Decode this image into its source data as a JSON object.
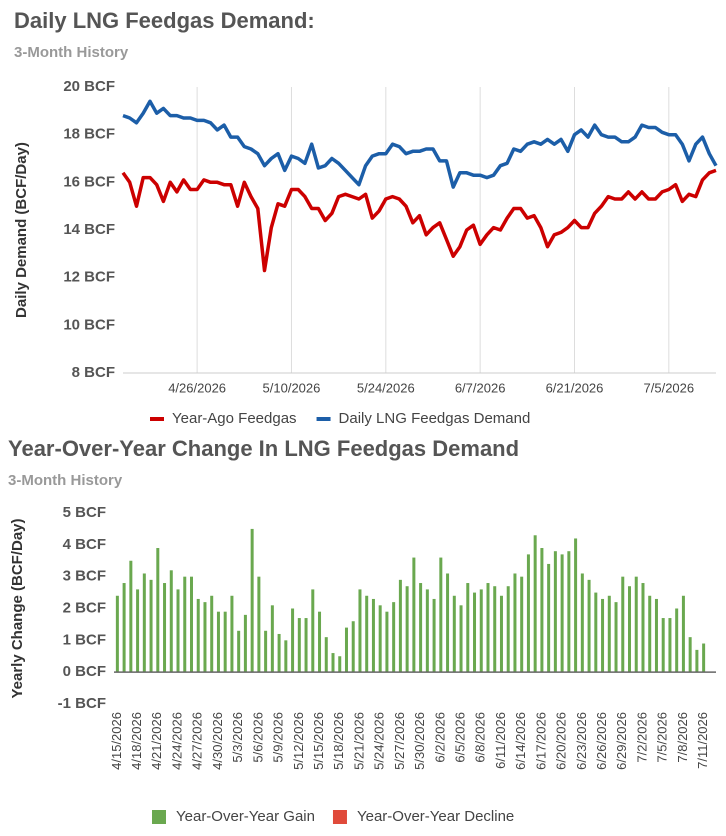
{
  "chart_data": [
    {
      "type": "line",
      "title": "Daily LNG Feedgas Demand:",
      "subtitle": "3-Month History",
      "ylabel": "Daily Demand (BCF/Day)",
      "x": [
        "4/15/2026",
        "4/16/2026",
        "4/17/2026",
        "4/18/2026",
        "4/19/2026",
        "4/20/2026",
        "4/21/2026",
        "4/22/2026",
        "4/23/2026",
        "4/24/2026",
        "4/25/2026",
        "4/26/2026",
        "4/27/2026",
        "4/28/2026",
        "4/29/2026",
        "4/30/2026",
        "5/1/2026",
        "5/2/2026",
        "5/3/2026",
        "5/4/2026",
        "5/5/2026",
        "5/6/2026",
        "5/7/2026",
        "5/8/2026",
        "5/9/2026",
        "5/10/2026",
        "5/11/2026",
        "5/12/2026",
        "5/13/2026",
        "5/14/2026",
        "5/15/2026",
        "5/16/2026",
        "5/17/2026",
        "5/18/2026",
        "5/19/2026",
        "5/20/2026",
        "5/21/2026",
        "5/22/2026",
        "5/23/2026",
        "5/24/2026",
        "5/25/2026",
        "5/26/2026",
        "5/27/2026",
        "5/28/2026",
        "5/29/2026",
        "5/30/2026",
        "5/31/2026",
        "6/1/2026",
        "6/2/2026",
        "6/3/2026",
        "6/4/2026",
        "6/5/2026",
        "6/6/2026",
        "6/7/2026",
        "6/8/2026",
        "6/9/2026",
        "6/10/2026",
        "6/11/2026",
        "6/12/2026",
        "6/13/2026",
        "6/14/2026",
        "6/15/2026",
        "6/16/2026",
        "6/17/2026",
        "6/18/2026",
        "6/19/2026",
        "6/20/2026",
        "6/21/2026",
        "6/22/2026",
        "6/23/2026",
        "6/24/2026",
        "6/25/2026",
        "6/26/2026",
        "6/27/2026",
        "6/28/2026",
        "6/29/2026",
        "6/30/2026",
        "7/1/2026",
        "7/2/2026",
        "7/3/2026",
        "7/4/2026",
        "7/5/2026",
        "7/6/2026",
        "7/7/2026",
        "7/8/2026",
        "7/9/2026",
        "7/10/2026",
        "7/11/2026",
        "7/12/2026"
      ],
      "xticks": [
        "4/26/2026",
        "5/10/2026",
        "5/24/2026",
        "6/7/2026",
        "6/21/2026",
        "7/5/2026"
      ],
      "ylim": [
        8,
        20
      ],
      "yticks": [
        {
          "value": 8,
          "label": "8 BCF"
        },
        {
          "value": 10,
          "label": "10 BCF"
        },
        {
          "value": 12,
          "label": "12 BCF"
        },
        {
          "value": 14,
          "label": "14 BCF"
        },
        {
          "value": 16,
          "label": "16 BCF"
        },
        {
          "value": 18,
          "label": "18 BCF"
        },
        {
          "value": 20,
          "label": "20 BCF"
        }
      ],
      "grid": "x",
      "series": [
        {
          "name": "Year-Ago Feedgas",
          "color": "#cc0000",
          "values": [
            16.4,
            16.0,
            15.0,
            16.2,
            16.2,
            15.9,
            15.2,
            16.0,
            15.6,
            16.1,
            15.7,
            15.7,
            16.1,
            16.0,
            16.0,
            15.9,
            15.9,
            15.0,
            16.0,
            15.4,
            14.9,
            12.3,
            14.1,
            15.1,
            15.0,
            15.7,
            15.7,
            15.4,
            14.9,
            14.9,
            14.4,
            14.7,
            15.4,
            15.5,
            15.4,
            15.3,
            15.5,
            14.5,
            14.8,
            15.3,
            15.4,
            15.3,
            15.0,
            14.3,
            14.6,
            13.8,
            14.1,
            14.3,
            13.6,
            12.9,
            13.3,
            14.0,
            14.2,
            13.4,
            13.8,
            14.1,
            14.0,
            14.5,
            14.9,
            14.9,
            14.5,
            14.6,
            14.1,
            13.3,
            13.8,
            13.9,
            14.1,
            14.4,
            14.1,
            14.1,
            14.7,
            15.0,
            15.4,
            15.3,
            15.3,
            15.6,
            15.3,
            15.6,
            15.3,
            15.3,
            15.6,
            15.7,
            15.9,
            15.2,
            15.5,
            15.4,
            16.1,
            16.4,
            16.5
          ]
        },
        {
          "name": "Daily LNG Feedgas Demand",
          "color": "#1c5ea8",
          "values": [
            18.8,
            18.7,
            18.5,
            18.9,
            19.4,
            18.9,
            19.1,
            18.8,
            18.8,
            18.7,
            18.7,
            18.6,
            18.6,
            18.5,
            18.2,
            18.4,
            17.9,
            17.9,
            17.5,
            17.4,
            17.2,
            16.7,
            17.0,
            17.2,
            16.5,
            17.1,
            17.0,
            16.8,
            17.6,
            16.6,
            16.7,
            17.0,
            16.8,
            16.5,
            16.2,
            15.9,
            16.7,
            17.1,
            17.2,
            17.2,
            17.6,
            17.5,
            17.2,
            17.3,
            17.3,
            17.4,
            17.4,
            16.9,
            16.9,
            15.8,
            16.4,
            16.4,
            16.3,
            16.3,
            16.2,
            16.3,
            16.7,
            16.8,
            17.4,
            17.3,
            17.6,
            17.7,
            17.6,
            17.8,
            17.6,
            17.8,
            17.3,
            18.0,
            18.2,
            17.9,
            18.4,
            18.0,
            17.9,
            17.9,
            17.7,
            17.7,
            17.9,
            18.4,
            18.3,
            18.3,
            18.1,
            18.0,
            18.0,
            17.6,
            16.9,
            17.6,
            17.9,
            17.2,
            16.7
          ]
        }
      ]
    },
    {
      "type": "bar",
      "title": "Year-Over-Year Change In LNG Feedgas Demand",
      "subtitle": "3-Month History",
      "ylabel": "Yearly Change (BCF/Day)",
      "categories": [
        "4/15/2026",
        null,
        null,
        "4/18/2026",
        null,
        null,
        "4/21/2026",
        null,
        null,
        "4/24/2026",
        null,
        null,
        "4/27/2026",
        null,
        null,
        "4/30/2026",
        null,
        null,
        "5/3/2026",
        null,
        null,
        "5/6/2026",
        null,
        null,
        "5/9/2026",
        null,
        null,
        "5/12/2026",
        null,
        null,
        "5/15/2026",
        null,
        null,
        "5/18/2026",
        null,
        null,
        "5/21/2026",
        null,
        null,
        "5/24/2026",
        null,
        null,
        "5/27/2026",
        null,
        null,
        "5/30/2026",
        null,
        null,
        "6/2/2026",
        null,
        null,
        "6/5/2026",
        null,
        null,
        "6/8/2026",
        null,
        null,
        "6/11/2026",
        null,
        null,
        "6/14/2026",
        null,
        null,
        "6/17/2026",
        null,
        null,
        "6/20/2026",
        null,
        null,
        "6/23/2026",
        null,
        null,
        "6/26/2026",
        null,
        null,
        "6/29/2026",
        null,
        null,
        "7/2/2026",
        null,
        null,
        "7/5/2026",
        null,
        null,
        "7/8/2026",
        null,
        null,
        "7/11/2026"
      ],
      "values": [
        2.4,
        2.8,
        3.5,
        2.6,
        3.1,
        2.9,
        3.9,
        2.8,
        3.2,
        2.6,
        3.0,
        3.0,
        2.3,
        2.2,
        2.4,
        1.9,
        1.9,
        2.4,
        1.3,
        1.8,
        4.5,
        3.0,
        1.3,
        2.1,
        1.2,
        1.0,
        2.0,
        1.7,
        1.7,
        2.6,
        1.9,
        1.1,
        0.6,
        0.5,
        1.4,
        1.6,
        2.6,
        2.4,
        2.3,
        2.1,
        1.9,
        2.2,
        2.9,
        2.7,
        3.6,
        2.8,
        2.6,
        2.3,
        3.6,
        3.1,
        2.4,
        2.1,
        2.8,
        2.5,
        2.6,
        2.8,
        2.7,
        2.4,
        2.7,
        3.1,
        3.0,
        3.7,
        4.3,
        3.9,
        3.4,
        3.8,
        3.7,
        3.8,
        4.2,
        3.1,
        2.9,
        2.5,
        2.3,
        2.4,
        2.2,
        3.0,
        2.7,
        3.0,
        2.8,
        2.4,
        2.3,
        1.7,
        1.7,
        2.0,
        2.4,
        1.1,
        0.7,
        0.9
      ],
      "ylim": [
        -1,
        5
      ],
      "yticks": [
        {
          "value": -1,
          "label": "-1 BCF"
        },
        {
          "value": 0,
          "label": "0 BCF"
        },
        {
          "value": 1,
          "label": "1 BCF"
        },
        {
          "value": 2,
          "label": "2 BCF"
        },
        {
          "value": 3,
          "label": "3 BCF"
        },
        {
          "value": 4,
          "label": "4 BCF"
        },
        {
          "value": 5,
          "label": "5 BCF"
        }
      ],
      "legend": [
        {
          "name": "Year-Over-Year Gain",
          "color": "#6aa84f"
        },
        {
          "name": "Year-Over-Year Decline",
          "color": "#e04a3a"
        }
      ]
    }
  ]
}
